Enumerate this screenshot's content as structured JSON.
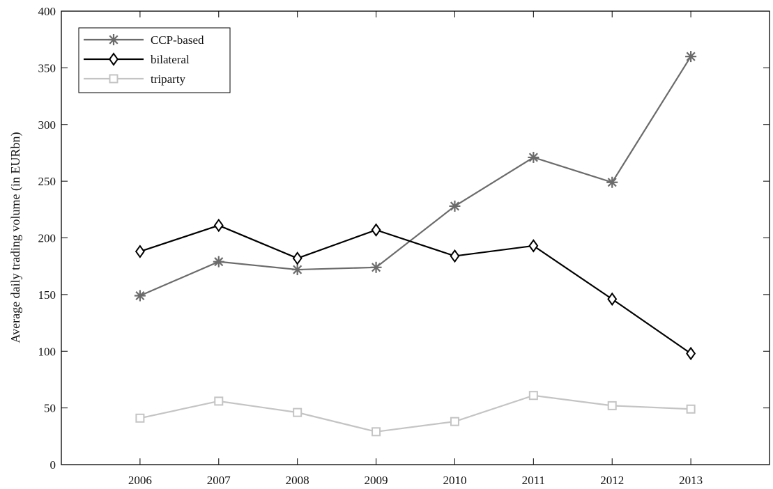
{
  "chart_data": {
    "type": "line",
    "title": "",
    "xlabel": "",
    "ylabel": "Average daily trading volume (in EURbn)",
    "x": [
      2006,
      2007,
      2008,
      2009,
      2010,
      2011,
      2012,
      2013
    ],
    "xlim": [
      2005,
      2014
    ],
    "ylim": [
      0,
      400
    ],
    "yticks": [
      0,
      50,
      100,
      150,
      200,
      250,
      300,
      350,
      400
    ],
    "grid": false,
    "legend_position": "top-left",
    "series": [
      {
        "name": "CCP-based",
        "marker": "asterisk",
        "color": "#6b6b6b",
        "values": [
          149,
          179,
          172,
          174,
          228,
          271,
          249,
          360
        ]
      },
      {
        "name": "bilateral",
        "marker": "diamond",
        "color": "#000000",
        "values": [
          188,
          211,
          182,
          207,
          184,
          193,
          146,
          98
        ]
      },
      {
        "name": "triparty",
        "marker": "square",
        "color": "#c4c4c4",
        "values": [
          41,
          56,
          46,
          29,
          38,
          61,
          52,
          49
        ]
      }
    ]
  }
}
